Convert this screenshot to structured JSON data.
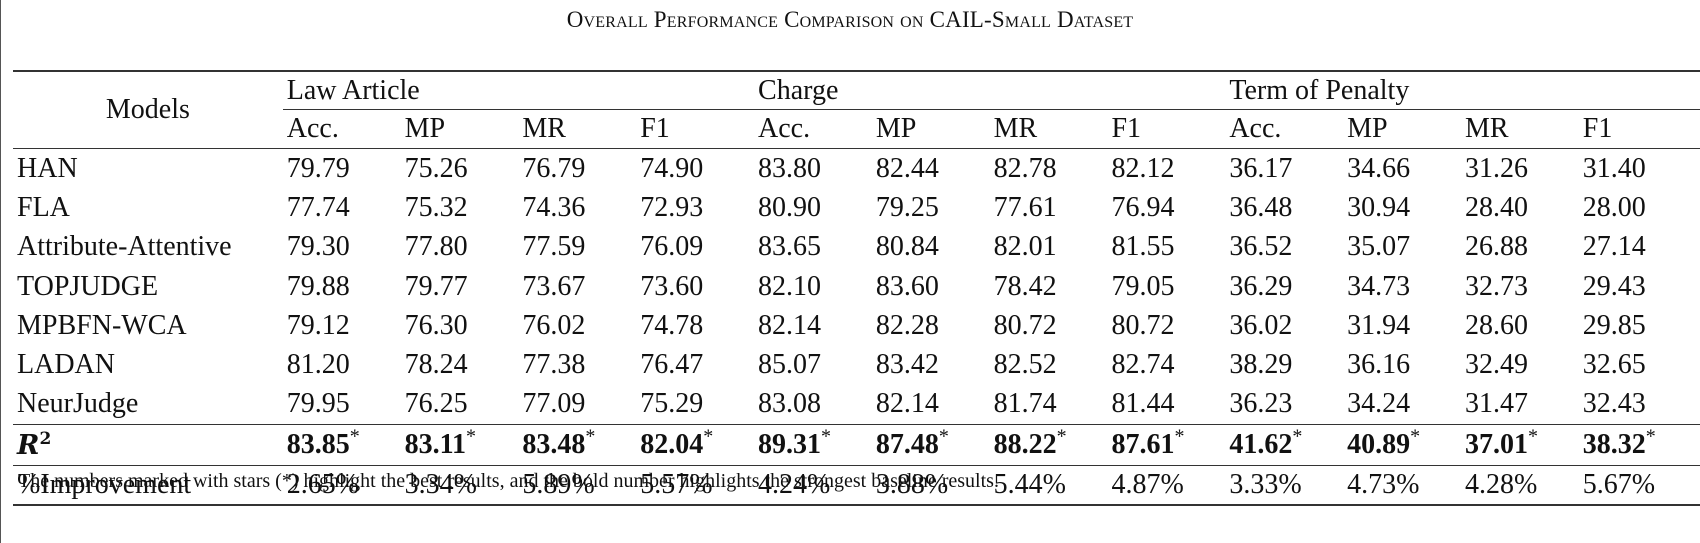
{
  "caption": "Overall Performance Comparison on CAIL-Small Dataset",
  "table": {
    "models_header": "Models",
    "groups": [
      "Law Article",
      "Charge",
      "Term of Penalty"
    ],
    "metrics": [
      "Acc.",
      "MP",
      "MR",
      "F1",
      "Acc.",
      "MP",
      "MR",
      "F1",
      "Acc.",
      "MP",
      "MR",
      "F1"
    ],
    "rows": [
      {
        "model": "HAN",
        "values": [
          "79.79",
          "75.26",
          "76.79",
          "74.90",
          "83.80",
          "82.44",
          "82.78",
          "82.12",
          "36.17",
          "34.66",
          "31.26",
          "31.40"
        ],
        "bold": [
          6
        ]
      },
      {
        "model": "FLA",
        "values": [
          "77.74",
          "75.32",
          "74.36",
          "72.93",
          "80.90",
          "79.25",
          "77.61",
          "76.94",
          "36.48",
          "30.94",
          "28.40",
          "28.00"
        ],
        "bold": []
      },
      {
        "model": "Attribute-Attentive",
        "values": [
          "79.30",
          "77.80",
          "77.59",
          "76.09",
          "83.65",
          "80.84",
          "82.01",
          "81.55",
          "36.52",
          "35.07",
          "26.88",
          "27.14"
        ],
        "bold": [
          2
        ]
      },
      {
        "model": "TOPJUDGE",
        "values": [
          "79.88",
          "79.77",
          "73.67",
          "73.60",
          "82.10",
          "83.60",
          "78.42",
          "79.05",
          "36.29",
          "34.73",
          "32.73",
          "29.43"
        ],
        "bold": [
          1,
          5,
          10
        ]
      },
      {
        "model": "MPBFN-WCA",
        "values": [
          "79.12",
          "76.30",
          "76.02",
          "74.78",
          "82.14",
          "82.28",
          "80.72",
          "80.72",
          "36.02",
          "31.94",
          "28.60",
          "29.85"
        ],
        "bold": []
      },
      {
        "model": "LADAN",
        "values": [
          "81.20",
          "78.24",
          "77.38",
          "76.47",
          "85.07",
          "83.42",
          "82.52",
          "82.74",
          "38.29",
          "36.16",
          "32.49",
          "32.65"
        ],
        "bold": [
          0,
          3,
          4,
          7,
          8,
          9,
          11
        ]
      },
      {
        "model": "NeurJudge",
        "values": [
          "79.95",
          "76.25",
          "77.09",
          "75.29",
          "83.08",
          "82.14",
          "81.74",
          "81.44",
          "36.23",
          "34.24",
          "31.47",
          "32.43"
        ],
        "bold": []
      }
    ],
    "r2_row": {
      "label": "R",
      "label_sup": "2",
      "star": "*",
      "values": [
        "83.85",
        "83.11",
        "83.48",
        "82.04",
        "89.31",
        "87.48",
        "88.22",
        "87.61",
        "41.62",
        "40.89",
        "37.01",
        "38.32"
      ]
    },
    "improvement_row": {
      "label": "%Improvement",
      "values": [
        "2.65%",
        "3.34%",
        "5.89%",
        "5.57%",
        "4.24%",
        "3.88%",
        "5.44%",
        "4.87%",
        "3.33%",
        "4.73%",
        "4.28%",
        "5.67%"
      ]
    }
  },
  "footnote": "The numbers marked with stars (*) highlight the best results, and the bold number highlights the strongest baseline results."
}
